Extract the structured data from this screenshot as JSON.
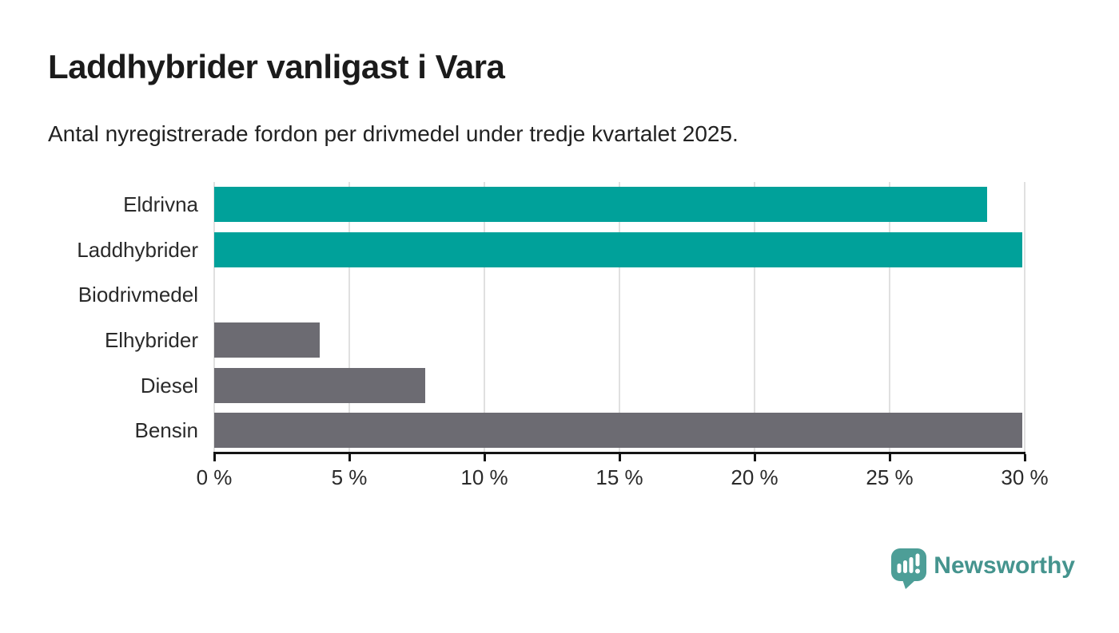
{
  "header": {
    "title": "Laddhybrider vanligast i Vara",
    "subtitle": "Antal nyregistrerade fordon per drivmedel under tredje kvartalet 2025."
  },
  "chart_data": {
    "type": "bar",
    "orientation": "horizontal",
    "title": "Laddhybrider vanligast i Vara",
    "subtitle": "Antal nyregistrerade fordon per drivmedel under tredje kvartalet 2025.",
    "categories": [
      "Eldrivna",
      "Laddhybrider",
      "Biodrivmedel",
      "Elhybrider",
      "Diesel",
      "Bensin"
    ],
    "values": [
      28.6,
      29.9,
      0,
      3.9,
      7.8,
      29.9
    ],
    "unit": "%",
    "bar_colors": [
      "#00a19a",
      "#00a19a",
      "#6c6b72",
      "#6c6b72",
      "#6c6b72",
      "#6c6b72"
    ],
    "xlim": [
      0,
      30
    ],
    "x_ticks": [
      0,
      5,
      10,
      15,
      20,
      25,
      30
    ],
    "x_tick_labels": [
      "0 %",
      "5 %",
      "10 %",
      "15 %",
      "20 %",
      "25 %",
      "30 %"
    ],
    "grid": "vertical",
    "legend": "none"
  },
  "colors": {
    "teal": "#00a19a",
    "gray": "#6c6b72",
    "gridline": "#e0e0e0",
    "axis": "#141414",
    "text": "#2a2a2a",
    "logo_icon": "#4d9e97",
    "logo_text": "#45948e"
  },
  "footer": {
    "brand": "Newsworthy"
  }
}
